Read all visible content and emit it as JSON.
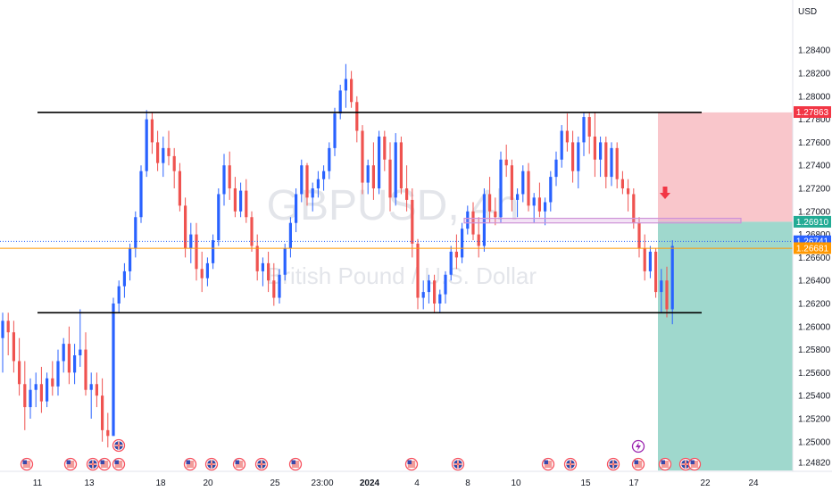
{
  "chart_data": {
    "type": "candlestick",
    "currency_label": "USD",
    "watermark": {
      "symbol": "GBPUSD, 4h",
      "name": "British Pound / U.S. Dollar"
    },
    "y_range": [
      1.2475,
      1.2865
    ],
    "y_ticks": [
      "1.28400",
      "1.28200",
      "1.28000",
      "1.27800",
      "1.27600",
      "1.27400",
      "1.27200",
      "1.27000",
      "1.26800",
      "1.26600",
      "1.26400",
      "1.26200",
      "1.26000",
      "1.25800",
      "1.25600",
      "1.25400",
      "1.25200",
      "1.25000",
      "1.24820"
    ],
    "x_labels": [
      {
        "label": "11",
        "bold": false
      },
      {
        "label": "13",
        "bold": false
      },
      {
        "label": "18",
        "bold": false
      },
      {
        "label": "20",
        "bold": false
      },
      {
        "label": "25",
        "bold": false
      },
      {
        "label": "23:00",
        "bold": false
      },
      {
        "label": "2024",
        "bold": true
      },
      {
        "label": "4",
        "bold": false
      },
      {
        "label": "8",
        "bold": false
      },
      {
        "label": "10",
        "bold": false
      },
      {
        "label": "15",
        "bold": false
      },
      {
        "label": "17",
        "bold": false
      },
      {
        "label": "22",
        "bold": false
      },
      {
        "label": "24",
        "bold": false
      }
    ],
    "price_labels": [
      {
        "name": "take-profit-price",
        "text": "1.27863",
        "value": 1.27863,
        "color": "#f23645"
      },
      {
        "name": "entry-price",
        "text": "1.26910",
        "value": 1.2691,
        "color": "#22ab94"
      },
      {
        "name": "last-price",
        "text": "1.26741",
        "value": 1.26741,
        "color": "#2962ff"
      },
      {
        "name": "reference-price",
        "text": "1.26681",
        "value": 1.26681,
        "color": "#ff9800"
      }
    ],
    "levels": {
      "resistance": 1.2786,
      "support": 1.2612,
      "zone_top": 1.2694,
      "zone_bottom": 1.269,
      "orange": 1.2668,
      "blue_dotted": 1.2674
    },
    "position": {
      "stop": 1.2786,
      "entry": 1.2691,
      "target": 1.2475
    },
    "colors": {
      "up": "#2962ff",
      "down": "#ef5350",
      "stop_zone": "#f9c6cb",
      "target_zone": "#9fd8cd",
      "zone": "#ce93d8",
      "orange": "#ff9800"
    },
    "candles": [
      [
        1.259,
        1.2612,
        1.256,
        1.2605
      ],
      [
        1.2605,
        1.2612,
        1.2575,
        1.2595
      ],
      [
        1.2595,
        1.2605,
        1.256,
        1.257
      ],
      [
        1.257,
        1.259,
        1.254,
        1.255
      ],
      [
        1.255,
        1.257,
        1.251,
        1.253
      ],
      [
        1.253,
        1.2555,
        1.252,
        1.2545
      ],
      [
        1.2545,
        1.256,
        1.253,
        1.255
      ],
      [
        1.255,
        1.2565,
        1.2525,
        1.2535
      ],
      [
        1.2535,
        1.256,
        1.253,
        1.2555
      ],
      [
        1.2555,
        1.257,
        1.254,
        1.2548
      ],
      [
        1.2548,
        1.258,
        1.254,
        1.257
      ],
      [
        1.257,
        1.259,
        1.256,
        1.2585
      ],
      [
        1.2585,
        1.26,
        1.255,
        1.256
      ],
      [
        1.256,
        1.2585,
        1.255,
        1.2575
      ],
      [
        1.2575,
        1.2615,
        1.2565,
        1.258
      ],
      [
        1.258,
        1.2595,
        1.254,
        1.2545
      ],
      [
        1.2545,
        1.256,
        1.252,
        1.255
      ],
      [
        1.255,
        1.256,
        1.253,
        1.254
      ],
      [
        1.254,
        1.2555,
        1.25,
        1.251
      ],
      [
        1.251,
        1.2525,
        1.2495,
        1.2505
      ],
      [
        1.2505,
        1.2625,
        1.2505,
        1.262
      ],
      [
        1.262,
        1.264,
        1.2612,
        1.2635
      ],
      [
        1.2635,
        1.2655,
        1.2625,
        1.2648
      ],
      [
        1.2648,
        1.2672,
        1.264,
        1.2668
      ],
      [
        1.2668,
        1.27,
        1.266,
        1.2695
      ],
      [
        1.2695,
        1.274,
        1.269,
        1.2735
      ],
      [
        1.2735,
        1.2788,
        1.273,
        1.278
      ],
      [
        1.278,
        1.2786,
        1.275,
        1.276
      ],
      [
        1.276,
        1.277,
        1.2735,
        1.2742
      ],
      [
        1.2742,
        1.2765,
        1.273,
        1.2755
      ],
      [
        1.2755,
        1.277,
        1.274,
        1.2748
      ],
      [
        1.2748,
        1.2755,
        1.272,
        1.2735
      ],
      [
        1.2735,
        1.2742,
        1.27,
        1.2705
      ],
      [
        1.2705,
        1.2712,
        1.266,
        1.2668
      ],
      [
        1.2668,
        1.269,
        1.2655,
        1.268
      ],
      [
        1.268,
        1.269,
        1.264,
        1.265
      ],
      [
        1.265,
        1.2665,
        1.263,
        1.2642
      ],
      [
        1.2642,
        1.266,
        1.2635,
        1.2655
      ],
      [
        1.2655,
        1.268,
        1.265,
        1.2675
      ],
      [
        1.2675,
        1.272,
        1.267,
        1.2715
      ],
      [
        1.2715,
        1.275,
        1.2705,
        1.274
      ],
      [
        1.274,
        1.2752,
        1.271,
        1.272
      ],
      [
        1.272,
        1.273,
        1.2695,
        1.27
      ],
      [
        1.27,
        1.2725,
        1.2695,
        1.2718
      ],
      [
        1.2718,
        1.2728,
        1.269,
        1.2695
      ],
      [
        1.2695,
        1.27,
        1.2665,
        1.267
      ],
      [
        1.267,
        1.268,
        1.264,
        1.2648
      ],
      [
        1.2648,
        1.266,
        1.2635,
        1.2655
      ],
      [
        1.2655,
        1.2665,
        1.263,
        1.264
      ],
      [
        1.264,
        1.2655,
        1.2618,
        1.2625
      ],
      [
        1.2625,
        1.265,
        1.262,
        1.2645
      ],
      [
        1.2645,
        1.2672,
        1.264,
        1.2668
      ],
      [
        1.2668,
        1.2695,
        1.266,
        1.269
      ],
      [
        1.269,
        1.272,
        1.2682,
        1.2715
      ],
      [
        1.2715,
        1.2745,
        1.2708,
        1.274
      ],
      [
        1.274,
        1.2742,
        1.2705,
        1.2712
      ],
      [
        1.2712,
        1.2725,
        1.27,
        1.272
      ],
      [
        1.272,
        1.2735,
        1.2712,
        1.2728
      ],
      [
        1.2728,
        1.274,
        1.2718,
        1.2735
      ],
      [
        1.2735,
        1.276,
        1.2728,
        1.2755
      ],
      [
        1.2755,
        1.279,
        1.2748,
        1.2785
      ],
      [
        1.2785,
        1.281,
        1.278,
        1.2805
      ],
      [
        1.2805,
        1.2828,
        1.279,
        1.2815
      ],
      [
        1.2815,
        1.2822,
        1.279,
        1.2795
      ],
      [
        1.2795,
        1.28,
        1.276,
        1.277
      ],
      [
        1.277,
        1.2775,
        1.2715,
        1.2725
      ],
      [
        1.2725,
        1.2745,
        1.2715,
        1.274
      ],
      [
        1.274,
        1.276,
        1.271,
        1.272
      ],
      [
        1.272,
        1.277,
        1.2715,
        1.2765
      ],
      [
        1.2765,
        1.277,
        1.2735,
        1.2745
      ],
      [
        1.2745,
        1.276,
        1.27,
        1.2712
      ],
      [
        1.2712,
        1.2768,
        1.2705,
        1.276
      ],
      [
        1.276,
        1.2765,
        1.2715,
        1.272
      ],
      [
        1.272,
        1.274,
        1.27,
        1.271
      ],
      [
        1.271,
        1.272,
        1.266,
        1.2672
      ],
      [
        1.2672,
        1.2676,
        1.2615,
        1.2625
      ],
      [
        1.2625,
        1.264,
        1.2615,
        1.263
      ],
      [
        1.263,
        1.2645,
        1.262,
        1.264
      ],
      [
        1.264,
        1.2645,
        1.2612,
        1.262
      ],
      [
        1.262,
        1.2632,
        1.2612,
        1.2628
      ],
      [
        1.2628,
        1.2648,
        1.262,
        1.2645
      ],
      [
        1.2645,
        1.267,
        1.264,
        1.2665
      ],
      [
        1.2665,
        1.268,
        1.265,
        1.266
      ],
      [
        1.266,
        1.269,
        1.2655,
        1.2685
      ],
      [
        1.2685,
        1.2705,
        1.268,
        1.27
      ],
      [
        1.27,
        1.2708,
        1.2675,
        1.268
      ],
      [
        1.268,
        1.2695,
        1.266,
        1.267
      ],
      [
        1.267,
        1.272,
        1.2665,
        1.2715
      ],
      [
        1.2715,
        1.273,
        1.269,
        1.27
      ],
      [
        1.27,
        1.2712,
        1.2688,
        1.2695
      ],
      [
        1.2695,
        1.2752,
        1.269,
        1.2745
      ],
      [
        1.2745,
        1.2758,
        1.273,
        1.274
      ],
      [
        1.274,
        1.2745,
        1.27,
        1.271
      ],
      [
        1.271,
        1.272,
        1.2695,
        1.2715
      ],
      [
        1.2715,
        1.274,
        1.2708,
        1.2735
      ],
      [
        1.2735,
        1.2742,
        1.27,
        1.2705
      ],
      [
        1.2705,
        1.2716,
        1.269,
        1.2712
      ],
      [
        1.2712,
        1.2725,
        1.2695,
        1.27
      ],
      [
        1.27,
        1.2712,
        1.2688,
        1.2708
      ],
      [
        1.2708,
        1.2735,
        1.27,
        1.273
      ],
      [
        1.273,
        1.2752,
        1.2722,
        1.2745
      ],
      [
        1.2745,
        1.2775,
        1.2738,
        1.277
      ],
      [
        1.277,
        1.2785,
        1.2752,
        1.276
      ],
      [
        1.276,
        1.277,
        1.2725,
        1.2735
      ],
      [
        1.2735,
        1.2765,
        1.272,
        1.276
      ],
      [
        1.276,
        1.2786,
        1.2748,
        1.2782
      ],
      [
        1.2782,
        1.2786,
        1.275,
        1.2765
      ],
      [
        1.2765,
        1.2786,
        1.273,
        1.2745
      ],
      [
        1.2745,
        1.2765,
        1.273,
        1.276
      ],
      [
        1.276,
        1.2765,
        1.272,
        1.273
      ],
      [
        1.273,
        1.276,
        1.2722,
        1.2755
      ],
      [
        1.2755,
        1.276,
        1.272,
        1.2728
      ],
      [
        1.2728,
        1.2735,
        1.2715,
        1.272
      ],
      [
        1.272,
        1.2728,
        1.27,
        1.2715
      ],
      [
        1.2715,
        1.272,
        1.2685,
        1.269
      ],
      [
        1.269,
        1.2695,
        1.266,
        1.2668
      ],
      [
        1.2668,
        1.268,
        1.264,
        1.2648
      ],
      [
        1.2648,
        1.267,
        1.2642,
        1.2665
      ],
      [
        1.2665,
        1.2668,
        1.2625,
        1.263
      ],
      [
        1.263,
        1.265,
        1.2612,
        1.264
      ],
      [
        1.264,
        1.2652,
        1.2608,
        1.2615
      ],
      [
        1.2615,
        1.2675,
        1.2602,
        1.267
      ]
    ]
  }
}
